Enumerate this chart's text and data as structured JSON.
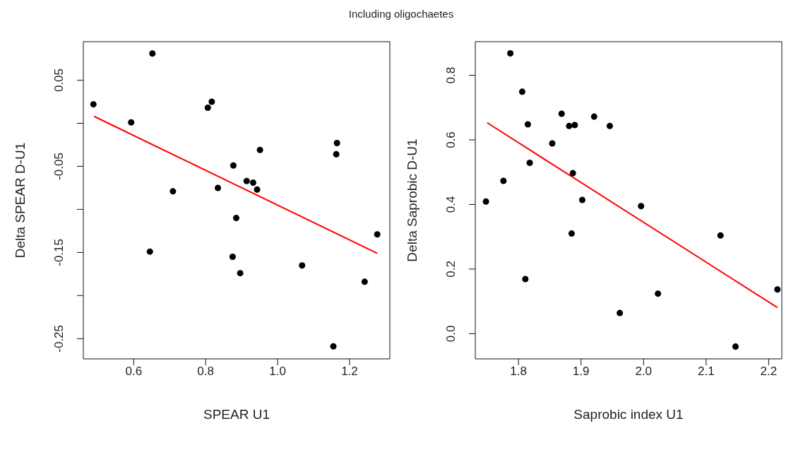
{
  "chart_data": [
    {
      "type": "scatter",
      "title": "Including oligochaetes",
      "xlabel": "SPEAR U1",
      "ylabel": "Delta SPEAR D-U1",
      "xlim": [
        0.46,
        1.312
      ],
      "ylim": [
        -0.2735,
        0.0947
      ],
      "xticks": [
        {
          "value": 0.6,
          "label": "0.6"
        },
        {
          "value": 0.8,
          "label": "0.8"
        },
        {
          "value": 1.0,
          "label": "1.0"
        },
        {
          "value": 1.2,
          "label": "1.2"
        }
      ],
      "yticks": [
        {
          "value": 0.05,
          "label": "0.05"
        },
        {
          "value": 0,
          "label": null
        },
        {
          "value": -0.05,
          "label": "-0.05"
        },
        {
          "value": -0.1,
          "label": null
        },
        {
          "value": -0.15,
          "label": "-0.15"
        },
        {
          "value": -0.2,
          "label": null
        },
        {
          "value": -0.25,
          "label": "-0.25"
        }
      ],
      "grid": false,
      "legend": false,
      "series": [
        {
          "marker": "circle",
          "color": "#000000",
          "x": [
            0.488,
            0.593,
            0.652,
            0.806,
            0.817,
            0.709,
            0.834,
            0.877,
            0.951,
            0.914,
            0.932,
            0.943,
            0.885,
            0.645,
            0.875,
            0.896,
            1.068,
            1.165,
            1.163,
            1.277,
            1.242,
            1.155
          ],
          "values": [
            0.022,
            0.001,
            0.081,
            0.018,
            0.025,
            -0.079,
            -0.075,
            -0.049,
            -0.031,
            -0.067,
            -0.069,
            -0.077,
            -0.11,
            -0.149,
            -0.155,
            -0.174,
            -0.165,
            -0.023,
            -0.036,
            -0.129,
            -0.184,
            -0.259
          ]
        },
        {
          "type": "line",
          "marker": "none",
          "color": "#ff0000",
          "x": [
            0.49,
            1.277
          ],
          "values": [
            0.008,
            -0.151
          ]
        }
      ]
    },
    {
      "type": "scatter",
      "xlabel": "Saprobic index U1",
      "ylabel": "Delta Saprobic D-U1",
      "xlim": [
        1.731,
        2.221
      ],
      "ylim": [
        -0.078,
        0.904
      ],
      "xticks": [
        {
          "value": 1.8,
          "label": "1.8"
        },
        {
          "value": 1.9,
          "label": "1.9"
        },
        {
          "value": 2.0,
          "label": "2.0"
        },
        {
          "value": 2.1,
          "label": "2.1"
        },
        {
          "value": 2.2,
          "label": "2.2"
        }
      ],
      "yticks": [
        {
          "value": 0,
          "label": "0.0"
        },
        {
          "value": 0.2,
          "label": "0.2"
        },
        {
          "value": 0.4,
          "label": "0.4"
        },
        {
          "value": 0.6,
          "label": "0.6"
        },
        {
          "value": 0.8,
          "label": "0.8"
        }
      ],
      "grid": false,
      "legend": false,
      "series": [
        {
          "marker": "circle",
          "color": "#000000",
          "x": [
            1.787,
            1.806,
            1.815,
            1.818,
            1.776,
            1.748,
            1.811,
            1.854,
            1.869,
            1.881,
            1.89,
            1.921,
            1.946,
            1.887,
            1.902,
            1.885,
            1.996,
            1.962,
            2.023,
            2.123,
            2.147,
            2.214
          ],
          "values": [
            0.868,
            0.749,
            0.648,
            0.529,
            0.473,
            0.409,
            0.169,
            0.589,
            0.681,
            0.643,
            0.646,
            0.672,
            0.643,
            0.497,
            0.414,
            0.31,
            0.395,
            0.064,
            0.124,
            0.304,
            -0.04,
            0.137
          ]
        },
        {
          "type": "line",
          "marker": "none",
          "color": "#ff0000",
          "x": [
            1.75,
            2.214
          ],
          "values": [
            0.653,
            0.081
          ]
        }
      ]
    }
  ]
}
